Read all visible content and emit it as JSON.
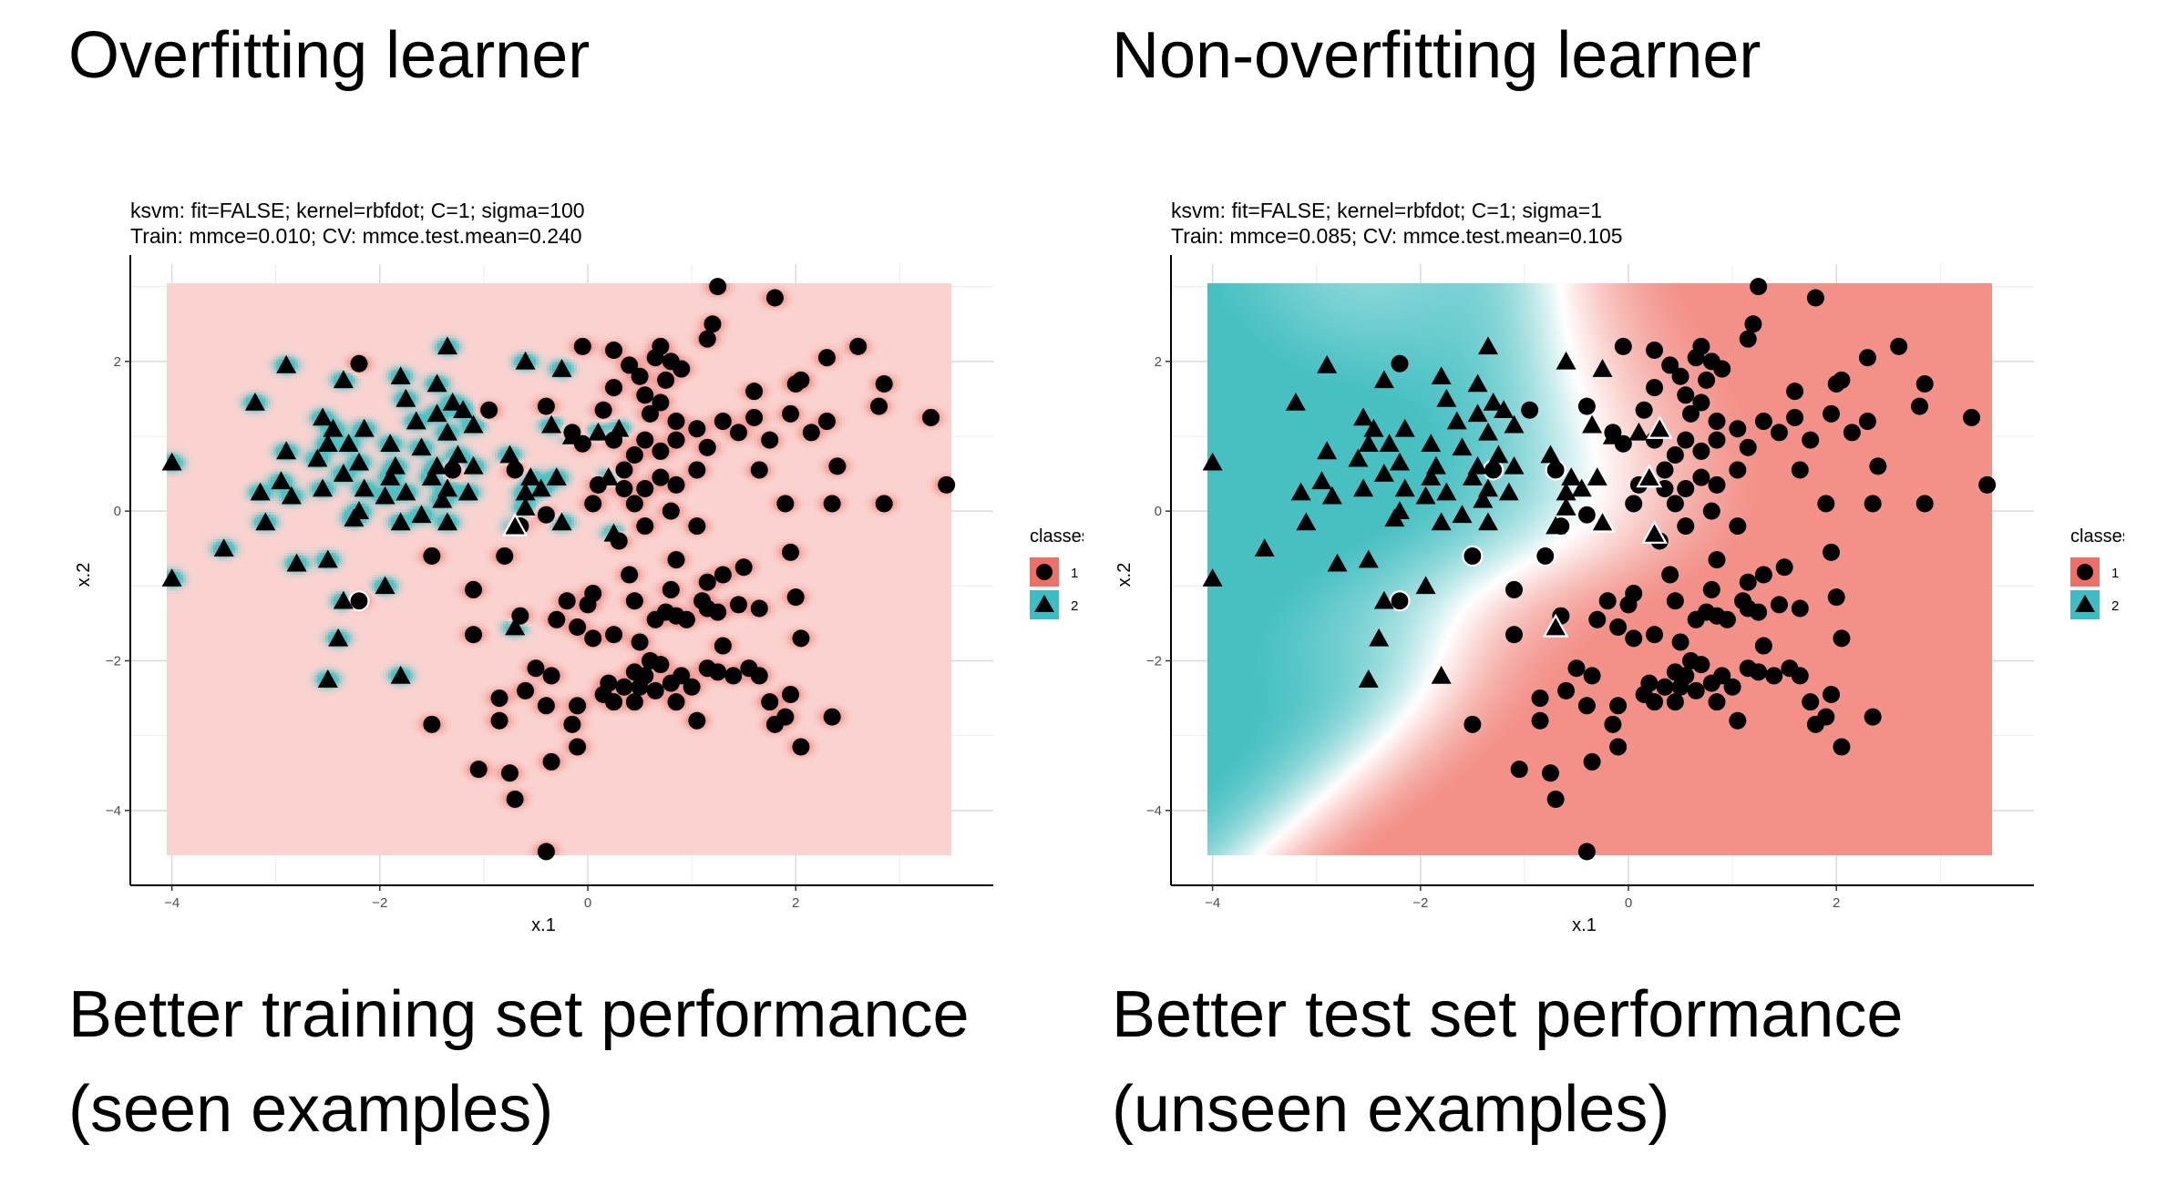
{
  "headings": {
    "left": "Overfitting learner",
    "right": "Non-overfitting learner"
  },
  "captions": {
    "left_line1": "Better training set performance",
    "left_line2": "(seen examples)",
    "right_line1": "Better test set performance",
    "right_line2": "(unseen examples)"
  },
  "colors": {
    "class1_region": "#f28b82",
    "class2_region": "#3dbdbf",
    "class1_legend": "#ef6f66",
    "class2_legend": "#3dbdc4",
    "grid": "#d9d9d9",
    "point": "#000000"
  },
  "chart_data": [
    {
      "type": "scatter",
      "title": "ksvm: fit=FALSE; kernel=rbfdot; C=1; sigma=100",
      "subtitle": "Train: mmce=0.010; CV: mmce.test.mean=0.240",
      "xlabel": "x.1",
      "ylabel": "x.2",
      "xlim": [
        -4.4,
        3.9
      ],
      "ylim": [
        -5.0,
        3.3
      ],
      "xticks": [
        -4,
        -2,
        0,
        2
      ],
      "yticks": [
        -4,
        -2,
        0,
        2
      ],
      "legend_title": "classes",
      "legend_labels": [
        "1",
        "2"
      ],
      "legend_position": "right",
      "grid": true,
      "boundary_kind": "local",
      "gamma": 100,
      "misclassified_markers": [
        [
          -2.2,
          -1.2
        ],
        [
          -0.7,
          -0.2
        ]
      ]
    },
    {
      "type": "scatter",
      "title": "ksvm: fit=FALSE; kernel=rbfdot; C=1; sigma=1",
      "subtitle": "Train: mmce=0.085; CV: mmce.test.mean=0.105",
      "xlabel": "x.1",
      "ylabel": "x.2",
      "xlim": [
        -4.4,
        3.9
      ],
      "ylim": [
        -5.0,
        3.3
      ],
      "xticks": [
        -4,
        -2,
        0,
        2
      ],
      "yticks": [
        -4,
        -2,
        0,
        2
      ],
      "legend_title": "classes",
      "legend_labels": [
        "1",
        "2"
      ],
      "legend_position": "right",
      "grid": true,
      "boundary_kind": "smooth",
      "gamma": 1,
      "misclassified_markers": [
        [
          -2.2,
          2.0
        ],
        [
          -2.2,
          -1.2
        ],
        [
          -1.3,
          0.55
        ],
        [
          -0.9,
          1.35
        ],
        [
          -0.7,
          0.55
        ],
        [
          -0.35,
          1.4
        ],
        [
          -0.4,
          -0.05
        ],
        [
          -0.65,
          -0.2
        ],
        [
          -0.8,
          -0.6
        ],
        [
          -1.5,
          -0.6
        ],
        [
          -0.25,
          1.85
        ],
        [
          0.1,
          1.0
        ],
        [
          0.3,
          1.1
        ],
        [
          -0.25,
          -0.15
        ],
        [
          0.2,
          0.45
        ],
        [
          0.25,
          -0.3
        ],
        [
          -0.7,
          -1.55
        ]
      ]
    }
  ],
  "points": {
    "class1": [
      [
        1.25,
        3.0
      ],
      [
        1.8,
        2.85
      ],
      [
        1.2,
        2.5
      ],
      [
        -0.05,
        2.2
      ],
      [
        0.25,
        2.15
      ],
      [
        1.15,
        2.3
      ],
      [
        0.7,
        2.2
      ],
      [
        0.65,
        2.05
      ],
      [
        0.8,
        2.0
      ],
      [
        0.9,
        1.9
      ],
      [
        0.4,
        1.95
      ],
      [
        -2.2,
        1.97
      ],
      [
        2.3,
        2.05
      ],
      [
        2.6,
        2.2
      ],
      [
        2.05,
        1.75
      ],
      [
        2.0,
        1.7
      ],
      [
        1.6,
        1.6
      ],
      [
        2.85,
        1.7
      ],
      [
        0.5,
        1.8
      ],
      [
        0.75,
        1.75
      ],
      [
        0.55,
        1.55
      ],
      [
        0.25,
        1.65
      ],
      [
        0.7,
        1.45
      ],
      [
        -0.4,
        1.4
      ],
      [
        -0.95,
        1.35
      ],
      [
        1.3,
        1.2
      ],
      [
        1.6,
        1.25
      ],
      [
        1.95,
        1.3
      ],
      [
        2.3,
        1.2
      ],
      [
        2.8,
        1.4
      ],
      [
        3.3,
        1.25
      ],
      [
        0.15,
        1.35
      ],
      [
        0.6,
        1.3
      ],
      [
        0.85,
        1.2
      ],
      [
        1.05,
        1.1
      ],
      [
        1.45,
        1.05
      ],
      [
        1.75,
        0.95
      ],
      [
        2.15,
        1.05
      ],
      [
        -0.15,
        1.05
      ],
      [
        -0.05,
        0.9
      ],
      [
        0.25,
        0.95
      ],
      [
        0.55,
        0.95
      ],
      [
        0.85,
        0.95
      ],
      [
        1.15,
        0.85
      ],
      [
        0.45,
        0.75
      ],
      [
        0.7,
        0.8
      ],
      [
        0.35,
        0.55
      ],
      [
        -0.7,
        0.55
      ],
      [
        -1.3,
        0.55
      ],
      [
        0.7,
        0.45
      ],
      [
        1.05,
        0.55
      ],
      [
        1.65,
        0.55
      ],
      [
        2.4,
        0.6
      ],
      [
        0.1,
        0.35
      ],
      [
        0.35,
        0.3
      ],
      [
        0.55,
        0.3
      ],
      [
        0.85,
        0.35
      ],
      [
        0.05,
        0.1
      ],
      [
        0.45,
        0.1
      ],
      [
        0.8,
        0.0
      ],
      [
        1.9,
        0.1
      ],
      [
        2.35,
        0.1
      ],
      [
        2.85,
        0.1
      ],
      [
        3.45,
        0.35
      ],
      [
        -0.4,
        -0.05
      ],
      [
        0.55,
        -0.2
      ],
      [
        1.05,
        -0.2
      ],
      [
        0.3,
        -0.4
      ],
      [
        -0.65,
        -0.2
      ],
      [
        1.95,
        -0.55
      ],
      [
        -0.8,
        -0.6
      ],
      [
        -1.5,
        -0.6
      ],
      [
        0.85,
        -0.65
      ],
      [
        1.5,
        -0.75
      ],
      [
        1.3,
        -0.85
      ],
      [
        1.15,
        -0.95
      ],
      [
        0.4,
        -0.85
      ],
      [
        -1.1,
        -1.05
      ],
      [
        0.05,
        -1.1
      ],
      [
        0.8,
        -1.05
      ],
      [
        2.0,
        -1.15
      ],
      [
        -2.2,
        -1.2
      ],
      [
        0.45,
        -1.2
      ],
      [
        1.1,
        -1.2
      ],
      [
        1.45,
        -1.25
      ],
      [
        -0.2,
        -1.2
      ],
      [
        0.0,
        -1.25
      ],
      [
        1.65,
        -1.3
      ],
      [
        -0.65,
        -1.4
      ],
      [
        -0.3,
        -1.45
      ],
      [
        0.65,
        -1.45
      ],
      [
        0.75,
        -1.35
      ],
      [
        0.85,
        -1.4
      ],
      [
        0.95,
        -1.45
      ],
      [
        1.15,
        -1.3
      ],
      [
        1.25,
        -1.35
      ],
      [
        2.05,
        -1.7
      ],
      [
        1.3,
        -1.8
      ],
      [
        0.05,
        -1.7
      ],
      [
        0.25,
        -1.65
      ],
      [
        0.5,
        -1.75
      ],
      [
        -0.1,
        -1.55
      ],
      [
        -1.1,
        -1.65
      ],
      [
        0.6,
        -2.0
      ],
      [
        0.7,
        -2.05
      ],
      [
        0.45,
        -2.15
      ],
      [
        0.55,
        -2.2
      ],
      [
        0.9,
        -2.2
      ],
      [
        1.4,
        -2.2
      ],
      [
        1.55,
        -2.1
      ],
      [
        1.65,
        -2.2
      ],
      [
        -0.5,
        -2.1
      ],
      [
        -0.35,
        -2.2
      ],
      [
        -0.6,
        -2.4
      ],
      [
        0.35,
        -2.35
      ],
      [
        1.15,
        -2.1
      ],
      [
        1.25,
        -2.15
      ],
      [
        1.0,
        -2.35
      ],
      [
        0.8,
        -2.3
      ],
      [
        0.2,
        -2.3
      ],
      [
        0.5,
        -2.35
      ],
      [
        0.65,
        -2.4
      ],
      [
        0.45,
        -2.55
      ],
      [
        0.25,
        -2.55
      ],
      [
        0.15,
        -2.45
      ],
      [
        0.85,
        -2.55
      ],
      [
        -0.1,
        -2.6
      ],
      [
        -0.4,
        -2.6
      ],
      [
        -0.85,
        -2.5
      ],
      [
        1.75,
        -2.55
      ],
      [
        1.95,
        -2.45
      ],
      [
        1.9,
        -2.75
      ],
      [
        2.35,
        -2.75
      ],
      [
        1.8,
        -2.85
      ],
      [
        -1.5,
        -2.85
      ],
      [
        -0.15,
        -2.85
      ],
      [
        -0.85,
        -2.8
      ],
      [
        1.05,
        -2.8
      ],
      [
        2.05,
        -3.15
      ],
      [
        -0.1,
        -3.15
      ],
      [
        -1.05,
        -3.45
      ],
      [
        -0.75,
        -3.5
      ],
      [
        -0.35,
        -3.35
      ],
      [
        -0.7,
        -3.85
      ],
      [
        -0.4,
        -4.55
      ]
    ],
    "class2": [
      [
        -1.35,
        2.2
      ],
      [
        -0.6,
        2.0
      ],
      [
        -2.9,
        1.95
      ],
      [
        -0.25,
        1.9
      ],
      [
        -1.8,
        1.8
      ],
      [
        -2.35,
        1.75
      ],
      [
        -1.45,
        1.7
      ],
      [
        -1.75,
        1.5
      ],
      [
        -3.2,
        1.45
      ],
      [
        -1.3,
        1.45
      ],
      [
        -1.2,
        1.35
      ],
      [
        -1.45,
        1.3
      ],
      [
        -2.55,
        1.25
      ],
      [
        -1.65,
        1.2
      ],
      [
        -1.1,
        1.15
      ],
      [
        -0.35,
        1.15
      ],
      [
        -2.45,
        1.1
      ],
      [
        -2.15,
        1.1
      ],
      [
        -1.35,
        1.05
      ],
      [
        -0.15,
        1.0
      ],
      [
        0.1,
        1.05
      ],
      [
        0.3,
        1.1
      ],
      [
        -2.5,
        0.9
      ],
      [
        -2.3,
        0.9
      ],
      [
        -1.9,
        0.9
      ],
      [
        -1.6,
        0.85
      ],
      [
        -1.25,
        0.75
      ],
      [
        -0.75,
        0.75
      ],
      [
        -2.9,
        0.8
      ],
      [
        -2.6,
        0.7
      ],
      [
        -2.2,
        0.65
      ],
      [
        -1.85,
        0.6
      ],
      [
        -1.45,
        0.6
      ],
      [
        -1.1,
        0.6
      ],
      [
        -4.0,
        0.65
      ],
      [
        -2.35,
        0.5
      ],
      [
        -1.9,
        0.45
      ],
      [
        -1.5,
        0.45
      ],
      [
        -1.35,
        0.3
      ],
      [
        -0.55,
        0.45
      ],
      [
        -0.3,
        0.45
      ],
      [
        0.2,
        0.45
      ],
      [
        -2.95,
        0.4
      ],
      [
        -3.15,
        0.25
      ],
      [
        -2.55,
        0.3
      ],
      [
        -2.15,
        0.3
      ],
      [
        -1.75,
        0.25
      ],
      [
        -1.15,
        0.25
      ],
      [
        -0.6,
        0.25
      ],
      [
        -0.45,
        0.3
      ],
      [
        -2.85,
        0.2
      ],
      [
        -1.95,
        0.2
      ],
      [
        -1.4,
        0.15
      ],
      [
        -0.6,
        0.05
      ],
      [
        -2.2,
        0.0
      ],
      [
        -3.1,
        -0.15
      ],
      [
        -2.25,
        -0.1
      ],
      [
        -1.6,
        -0.05
      ],
      [
        -1.8,
        -0.15
      ],
      [
        -1.35,
        -0.15
      ],
      [
        -0.7,
        -0.2
      ],
      [
        -0.25,
        -0.15
      ],
      [
        0.25,
        -0.3
      ],
      [
        -3.5,
        -0.5
      ],
      [
        -2.5,
        -0.65
      ],
      [
        -2.8,
        -0.7
      ],
      [
        -4.0,
        -0.9
      ],
      [
        -1.95,
        -1.0
      ],
      [
        -2.35,
        -1.2
      ],
      [
        -2.4,
        -1.7
      ],
      [
        -0.7,
        -1.55
      ],
      [
        -2.5,
        -2.25
      ],
      [
        -1.8,
        -2.2
      ]
    ]
  }
}
